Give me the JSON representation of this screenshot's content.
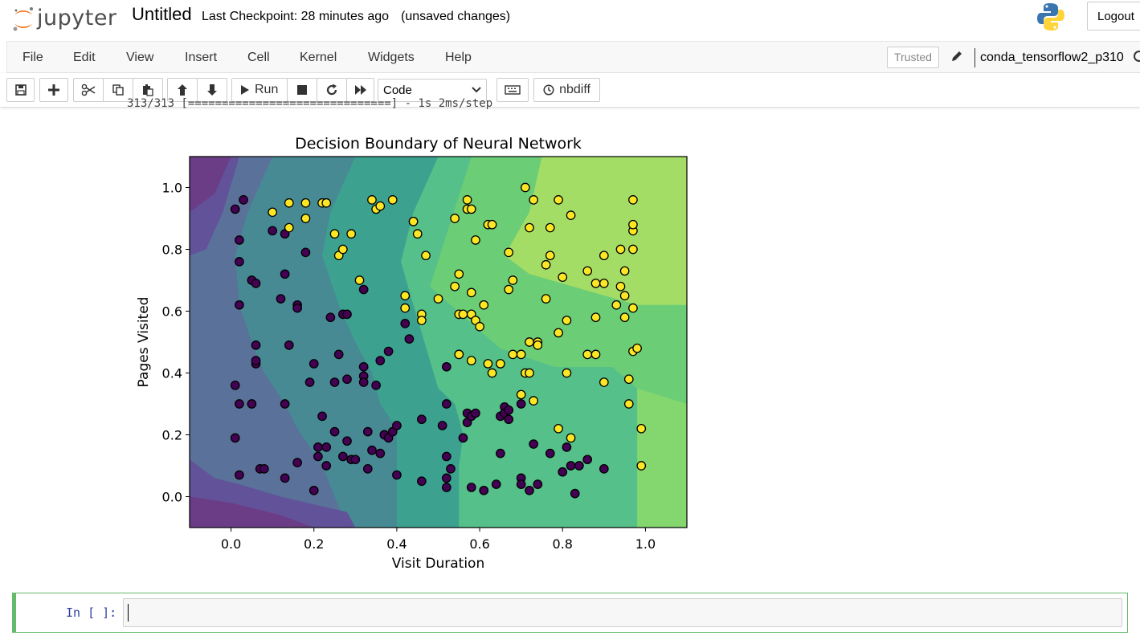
{
  "header": {
    "logo_text": "jupyter",
    "notebook_title": "Untitled",
    "checkpoint": "Last Checkpoint: 28 minutes ago",
    "save_status": "(unsaved changes)",
    "logout_label": "Logout"
  },
  "menubar": {
    "items": [
      "File",
      "Edit",
      "View",
      "Insert",
      "Cell",
      "Kernel",
      "Widgets",
      "Help"
    ],
    "trusted_label": "Trusted",
    "kernel_name": "conda_tensorflow2_p310"
  },
  "toolbar": {
    "run_label": "Run",
    "cell_type": "Code",
    "nbdiff_label": "nbdiff"
  },
  "output": {
    "stream_text": "313/313 [==============================] - 1s 2ms/step"
  },
  "chart_data": {
    "type": "scatter",
    "title": "Decision Boundary of Neural Network",
    "xlabel": "Visit Duration",
    "ylabel": "Pages Visited",
    "xlim": [
      -0.1,
      1.1
    ],
    "ylim": [
      -0.1,
      1.1
    ],
    "xticks": [
      "0.0",
      "0.2",
      "0.4",
      "0.6",
      "0.8",
      "1.0"
    ],
    "yticks": [
      "0.0",
      "0.2",
      "0.4",
      "0.6",
      "0.8",
      "1.0"
    ],
    "grid": false,
    "background": "contour",
    "colors": {
      "class0": "#440154",
      "class1": "#fde725"
    },
    "class0": [
      [
        0.01,
        0.93
      ],
      [
        0.03,
        0.96
      ],
      [
        0.02,
        0.83
      ],
      [
        0.02,
        0.76
      ],
      [
        0.05,
        0.7
      ],
      [
        0.06,
        0.69
      ],
      [
        0.02,
        0.62
      ],
      [
        0.01,
        0.36
      ],
      [
        0.02,
        0.3
      ],
      [
        0.05,
        0.3
      ],
      [
        0.01,
        0.19
      ],
      [
        0.02,
        0.07
      ],
      [
        0.06,
        0.43
      ],
      [
        0.06,
        0.44
      ],
      [
        0.06,
        0.49
      ],
      [
        0.07,
        0.09
      ],
      [
        0.08,
        0.09
      ],
      [
        0.1,
        0.86
      ],
      [
        0.13,
        0.85
      ],
      [
        0.12,
        0.64
      ],
      [
        0.13,
        0.72
      ],
      [
        0.14,
        0.49
      ],
      [
        0.13,
        0.3
      ],
      [
        0.13,
        0.06
      ],
      [
        0.16,
        0.62
      ],
      [
        0.16,
        0.61
      ],
      [
        0.16,
        0.11
      ],
      [
        0.18,
        0.79
      ],
      [
        0.19,
        0.37
      ],
      [
        0.2,
        0.43
      ],
      [
        0.2,
        0.02
      ],
      [
        0.21,
        0.13
      ],
      [
        0.21,
        0.16
      ],
      [
        0.22,
        0.26
      ],
      [
        0.23,
        0.16
      ],
      [
        0.23,
        0.1
      ],
      [
        0.24,
        0.58
      ],
      [
        0.25,
        0.21
      ],
      [
        0.25,
        0.37
      ],
      [
        0.26,
        0.46
      ],
      [
        0.27,
        0.59
      ],
      [
        0.28,
        0.59
      ],
      [
        0.28,
        0.38
      ],
      [
        0.27,
        0.13
      ],
      [
        0.29,
        0.12
      ],
      [
        0.28,
        0.18
      ],
      [
        0.3,
        0.12
      ],
      [
        0.32,
        0.67
      ],
      [
        0.32,
        0.42
      ],
      [
        0.32,
        0.39
      ],
      [
        0.33,
        0.09
      ],
      [
        0.32,
        0.37
      ],
      [
        0.33,
        0.21
      ],
      [
        0.34,
        0.15
      ],
      [
        0.35,
        0.36
      ],
      [
        0.36,
        0.44
      ],
      [
        0.36,
        0.14
      ],
      [
        0.37,
        0.2
      ],
      [
        0.38,
        0.47
      ],
      [
        0.37,
        0.2
      ],
      [
        0.38,
        0.19
      ],
      [
        0.39,
        0.21
      ],
      [
        0.4,
        0.23
      ],
      [
        0.4,
        0.07
      ],
      [
        0.42,
        0.56
      ],
      [
        0.43,
        0.51
      ],
      [
        0.46,
        0.05
      ],
      [
        0.46,
        0.25
      ],
      [
        0.52,
        0.3
      ],
      [
        0.51,
        0.23
      ],
      [
        0.52,
        0.42
      ],
      [
        0.53,
        0.09
      ],
      [
        0.52,
        0.13
      ],
      [
        0.52,
        0.06
      ],
      [
        0.52,
        0.03
      ],
      [
        0.55,
        0.46
      ],
      [
        0.56,
        0.19
      ],
      [
        0.57,
        0.27
      ],
      [
        0.57,
        0.24
      ],
      [
        0.58,
        0.26
      ],
      [
        0.58,
        0.03
      ],
      [
        0.59,
        0.27
      ],
      [
        0.61,
        0.02
      ],
      [
        0.64,
        0.04
      ],
      [
        0.65,
        0.26
      ],
      [
        0.66,
        0.29
      ],
      [
        0.66,
        0.27
      ],
      [
        0.67,
        0.25
      ],
      [
        0.67,
        0.28
      ],
      [
        0.65,
        0.14
      ],
      [
        0.7,
        0.3
      ],
      [
        0.7,
        0.06
      ],
      [
        0.7,
        0.04
      ],
      [
        0.72,
        0.02
      ],
      [
        0.73,
        0.17
      ],
      [
        0.74,
        0.04
      ],
      [
        0.77,
        0.14
      ],
      [
        0.8,
        0.08
      ],
      [
        0.81,
        0.16
      ],
      [
        0.82,
        0.1
      ],
      [
        0.84,
        0.1
      ],
      [
        0.83,
        0.01
      ],
      [
        0.86,
        0.12
      ],
      [
        0.9,
        0.09
      ]
    ],
    "class1": [
      [
        0.1,
        0.92
      ],
      [
        0.14,
        0.95
      ],
      [
        0.14,
        0.87
      ],
      [
        0.18,
        0.9
      ],
      [
        0.18,
        0.95
      ],
      [
        0.22,
        0.95
      ],
      [
        0.23,
        0.95
      ],
      [
        0.25,
        0.85
      ],
      [
        0.26,
        0.78
      ],
      [
        0.27,
        0.8
      ],
      [
        0.29,
        0.85
      ],
      [
        0.31,
        0.7
      ],
      [
        0.34,
        0.96
      ],
      [
        0.35,
        0.93
      ],
      [
        0.36,
        0.94
      ],
      [
        0.39,
        0.96
      ],
      [
        0.42,
        0.65
      ],
      [
        0.42,
        0.61
      ],
      [
        0.44,
        0.89
      ],
      [
        0.44,
        0.89
      ],
      [
        0.45,
        0.85
      ],
      [
        0.46,
        0.59
      ],
      [
        0.46,
        0.57
      ],
      [
        0.47,
        0.78
      ],
      [
        0.5,
        0.64
      ],
      [
        0.54,
        0.9
      ],
      [
        0.54,
        0.68
      ],
      [
        0.55,
        0.59
      ],
      [
        0.55,
        0.72
      ],
      [
        0.56,
        0.59
      ],
      [
        0.55,
        0.46
      ],
      [
        0.57,
        0.93
      ],
      [
        0.57,
        0.96
      ],
      [
        0.58,
        0.93
      ],
      [
        0.58,
        0.59
      ],
      [
        0.58,
        0.66
      ],
      [
        0.58,
        0.44
      ],
      [
        0.59,
        0.83
      ],
      [
        0.59,
        0.57
      ],
      [
        0.6,
        0.55
      ],
      [
        0.61,
        0.62
      ],
      [
        0.62,
        0.43
      ],
      [
        0.62,
        0.88
      ],
      [
        0.63,
        0.4
      ],
      [
        0.63,
        0.88
      ],
      [
        0.65,
        0.43
      ],
      [
        0.67,
        0.79
      ],
      [
        0.67,
        0.67
      ],
      [
        0.68,
        0.7
      ],
      [
        0.68,
        0.46
      ],
      [
        0.7,
        0.46
      ],
      [
        0.7,
        0.33
      ],
      [
        0.71,
        1.0
      ],
      [
        0.71,
        0.4
      ],
      [
        0.72,
        0.4
      ],
      [
        0.72,
        0.87
      ],
      [
        0.72,
        0.5
      ],
      [
        0.73,
        0.31
      ],
      [
        0.74,
        0.5
      ],
      [
        0.73,
        0.96
      ],
      [
        0.74,
        0.49
      ],
      [
        0.76,
        0.64
      ],
      [
        0.76,
        0.75
      ],
      [
        0.77,
        0.78
      ],
      [
        0.77,
        0.87
      ],
      [
        0.79,
        0.96
      ],
      [
        0.79,
        0.53
      ],
      [
        0.79,
        0.22
      ],
      [
        0.8,
        0.71
      ],
      [
        0.81,
        0.57
      ],
      [
        0.81,
        0.4
      ],
      [
        0.82,
        0.19
      ],
      [
        0.82,
        0.91
      ],
      [
        0.86,
        0.73
      ],
      [
        0.86,
        0.46
      ],
      [
        0.88,
        0.69
      ],
      [
        0.88,
        0.58
      ],
      [
        0.88,
        0.46
      ],
      [
        0.9,
        0.69
      ],
      [
        0.9,
        0.37
      ],
      [
        0.9,
        0.78
      ],
      [
        0.93,
        0.62
      ],
      [
        0.94,
        0.8
      ],
      [
        0.94,
        0.68
      ],
      [
        0.95,
        0.73
      ],
      [
        0.95,
        0.58
      ],
      [
        0.95,
        0.65
      ],
      [
        0.96,
        0.38
      ],
      [
        0.96,
        0.3
      ],
      [
        0.97,
        0.96
      ],
      [
        0.97,
        0.86
      ],
      [
        0.97,
        0.88
      ],
      [
        0.97,
        0.8
      ],
      [
        0.97,
        0.61
      ],
      [
        0.97,
        0.47
      ],
      [
        0.98,
        0.48
      ],
      [
        0.99,
        0.22
      ],
      [
        0.99,
        0.1
      ]
    ]
  },
  "cell": {
    "prompt": "In [ ]:"
  }
}
